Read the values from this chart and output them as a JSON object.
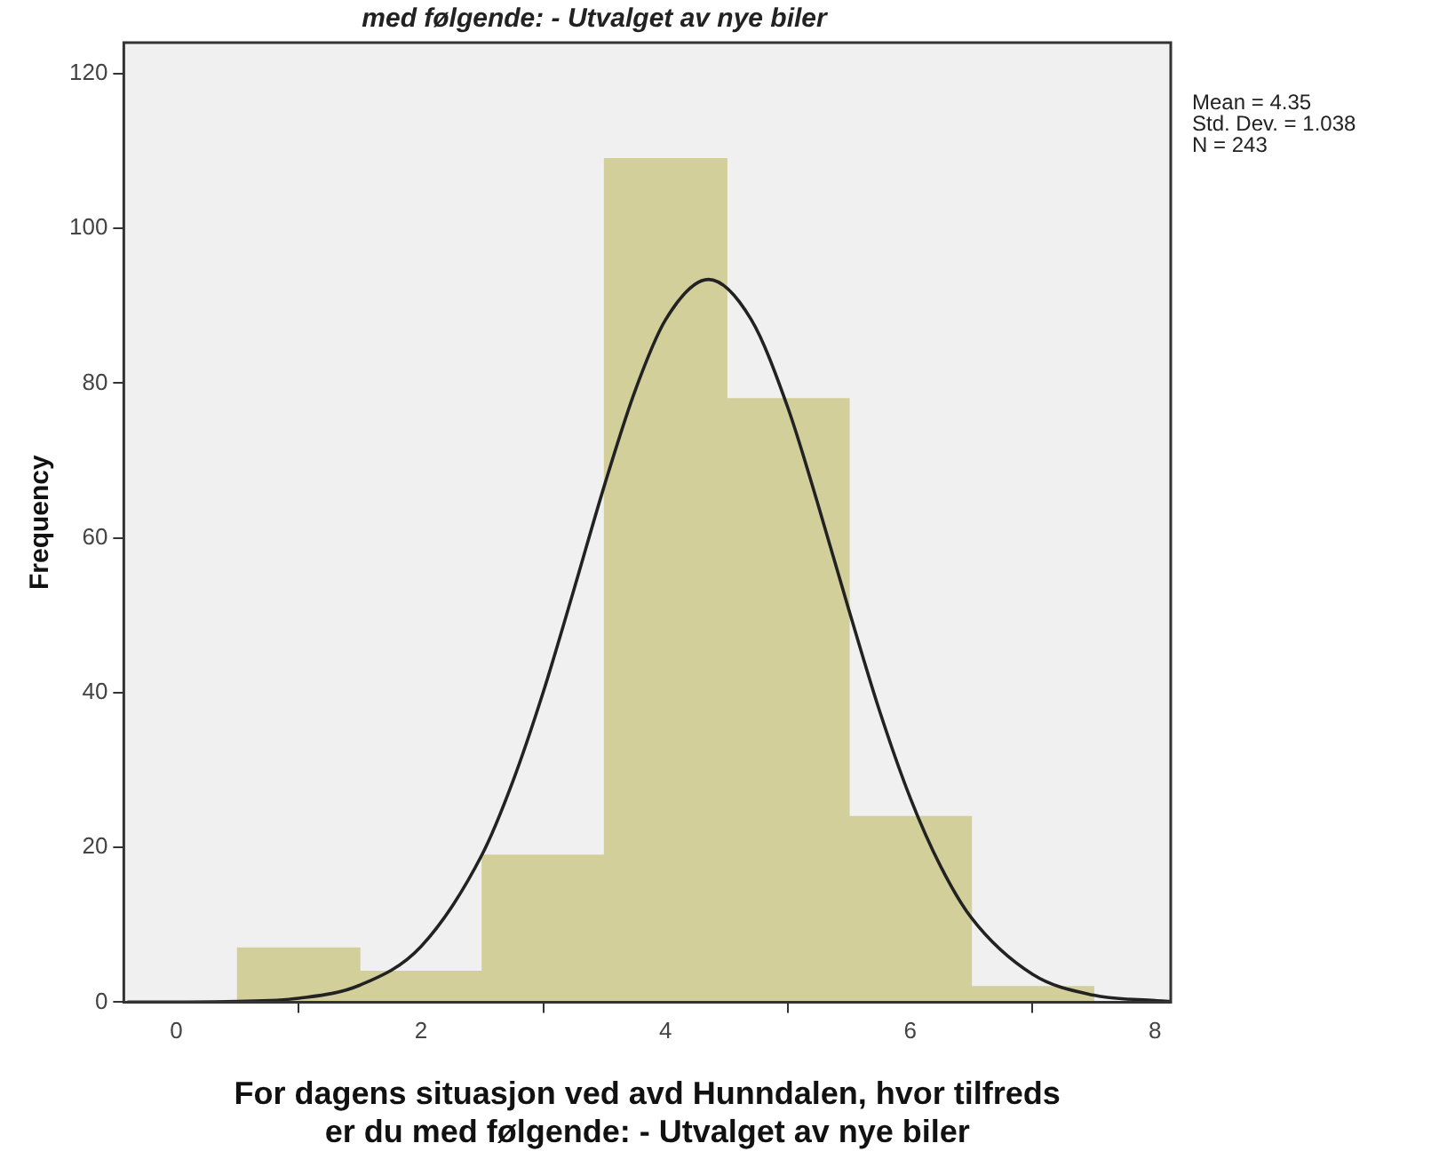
{
  "chart_data": {
    "type": "histogram",
    "title": "med følgende: - Utvalget av nye biler",
    "xlabel": "For dagens situasjon ved avd Hunndalen, hvor tilfreds er du med følgende: - Utvalget av nye biler",
    "ylabel": "Frequency",
    "bins": [
      0.5,
      1.5,
      2.5,
      3.5,
      4.5,
      5.5,
      6.5,
      7.5
    ],
    "values": [
      7,
      4,
      19,
      109,
      78,
      24,
      2
    ],
    "color": "#d3cf9a",
    "series": [
      {
        "type": "line",
        "color": "#222222",
        "x": [
          -0.4,
          0.5,
          1,
          1.5,
          2,
          2.5,
          2.75,
          3,
          3.25,
          3.5,
          3.75,
          4,
          4.35,
          4.7,
          5,
          5.25,
          5.5,
          5.75,
          6,
          6.25,
          6.5,
          7,
          7.5,
          8,
          8.13
        ],
        "values": [
          0,
          0.1,
          0.5,
          2.2,
          7.2,
          19.1,
          28.5,
          40.1,
          53.3,
          66.8,
          79.0,
          88.2,
          93.4,
          88.2,
          76.8,
          64.1,
          50.6,
          37.6,
          26.4,
          17.5,
          10.9,
          3.6,
          0.9,
          0.2,
          0.1
        ]
      }
    ],
    "xlim": [
      -0.43,
      8.13
    ],
    "ylim": [
      0,
      124
    ],
    "xticks": [
      0,
      2,
      4,
      6,
      8
    ],
    "yticks": [
      0,
      20,
      40,
      60,
      80,
      100,
      120
    ],
    "annotations": [
      "Mean = 4.35",
      "Std. Dev. = 1.038",
      "N = 243"
    ],
    "grid": false,
    "legend": false,
    "marker": "none"
  }
}
